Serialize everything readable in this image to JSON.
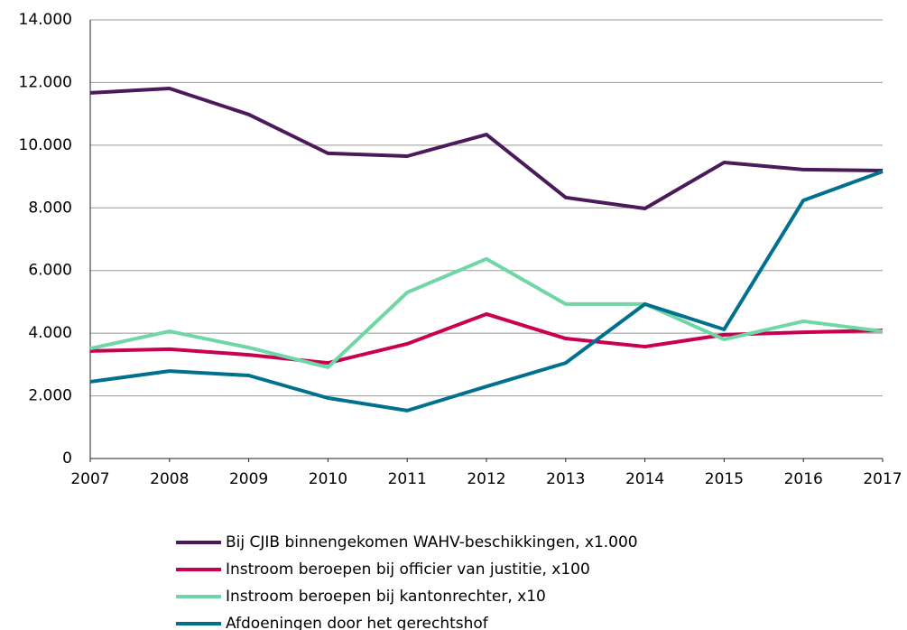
{
  "chart_data": {
    "type": "line",
    "x": [
      2007,
      2008,
      2009,
      2010,
      2011,
      2012,
      2013,
      2014,
      2015,
      2016,
      2017
    ],
    "xlim": [
      2007,
      2017
    ],
    "xticks": [
      2007,
      2008,
      2009,
      2010,
      2011,
      2012,
      2013,
      2014,
      2015,
      2016,
      2017
    ],
    "ylim": [
      0,
      14000
    ],
    "yticks": [
      0,
      {
        "value": 2000,
        "label": "2.000"
      },
      {
        "value": 4000,
        "label": "4.000"
      },
      {
        "value": 6000,
        "label": "6.000"
      },
      {
        "value": 8000,
        "label": "8.000"
      },
      {
        "value": 10000,
        "label": "10.000"
      },
      {
        "value": 12000,
        "label": "12.000"
      },
      {
        "value": 14000,
        "label": "14.000"
      }
    ],
    "grid": true,
    "legend": "bottom",
    "series": [
      {
        "name": "Bij CJIB binnengekomen WAHV-beschikkingen, x1.000",
        "color": "#4a1a5a",
        "values": [
          11670,
          11810,
          10980,
          9740,
          9650,
          10340,
          8330,
          7980,
          9450,
          9220,
          9190
        ]
      },
      {
        "name": "Instroom beroepen bij officier van justitie, x100",
        "color": "#c8004f",
        "values": [
          3430,
          3490,
          3310,
          3050,
          3660,
          4610,
          3830,
          3570,
          3950,
          4030,
          4090
        ]
      },
      {
        "name": "Instroom beroepen bij kantonrechter, x10",
        "color": "#6fd6a6",
        "values": [
          3510,
          4060,
          3540,
          2910,
          5300,
          6370,
          4930,
          4930,
          3800,
          4380,
          4060
        ]
      },
      {
        "name": "Afdoeningen door het gerechtshof",
        "color": "#00708f",
        "values": [
          2450,
          2790,
          2650,
          1930,
          1530,
          2300,
          3050,
          4930,
          4120,
          8240,
          9160
        ]
      }
    ]
  }
}
